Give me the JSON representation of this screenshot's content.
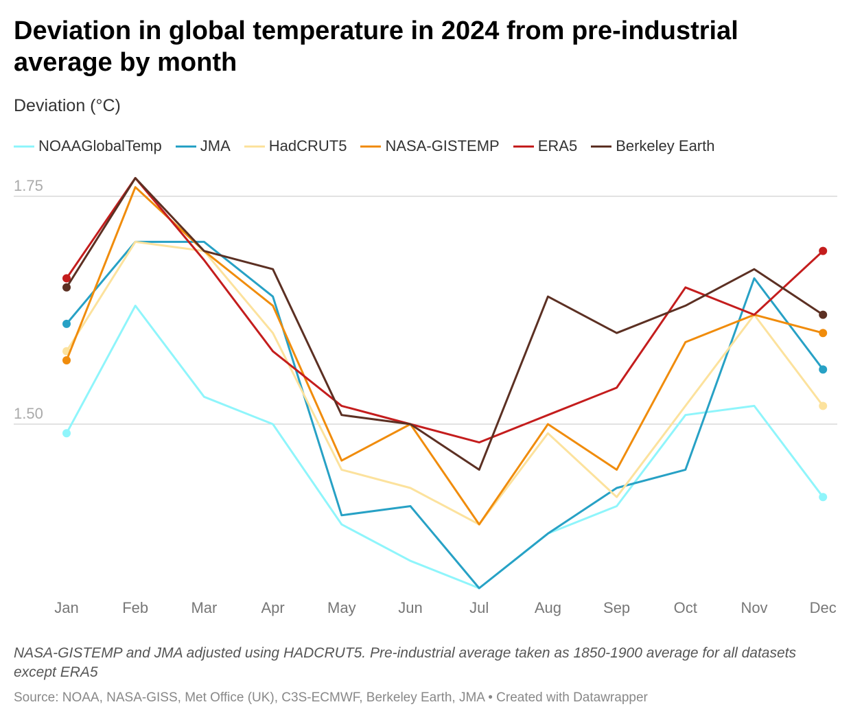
{
  "title": "Deviation in global temperature in 2024 from pre-industrial average by month",
  "subtitle": "Deviation (°C)",
  "notes": "NASA-GISTEMP and JMA adjusted using HADCRUT5. Pre-industrial average taken as 1850-1900 average for all datasets except ERA5",
  "source": "Source: NOAA, NASA-GISS, Met Office (UK), C3S-ECMWF, Berkeley Earth, JMA • Created with Datawrapper",
  "chart_data": {
    "type": "line",
    "title": "Deviation in global temperature in 2024 from pre-industrial average by month",
    "ylabel": "Deviation (°C)",
    "xlabel": "",
    "categories": [
      "Jan",
      "Feb",
      "Mar",
      "Apr",
      "May",
      "Jun",
      "Jul",
      "Aug",
      "Sep",
      "Oct",
      "Nov",
      "Dec"
    ],
    "yticks": [
      1.5,
      1.75
    ],
    "ytick_labels": [
      "1.50",
      "1.75"
    ],
    "ylim": [
      1.315,
      1.775
    ],
    "grid": true,
    "legend": "top",
    "series": [
      {
        "name": "NOAAGlobalTemp",
        "color": "#8ff5fb",
        "values": [
          1.49,
          1.63,
          1.53,
          1.5,
          1.39,
          1.35,
          1.32,
          1.38,
          1.41,
          1.51,
          1.52,
          1.42
        ]
      },
      {
        "name": "JMA",
        "color": "#27a1c5",
        "values": [
          1.61,
          1.7,
          1.7,
          1.64,
          1.4,
          1.41,
          1.32,
          1.38,
          1.43,
          1.45,
          1.66,
          1.56
        ]
      },
      {
        "name": "HadCRUT5",
        "color": "#fce29d",
        "values": [
          1.58,
          1.7,
          1.69,
          1.6,
          1.45,
          1.43,
          1.39,
          1.49,
          1.42,
          1.52,
          1.62,
          1.52
        ]
      },
      {
        "name": "NASA-GISTEMP",
        "color": "#f08c0c",
        "values": [
          1.57,
          1.76,
          1.69,
          1.63,
          1.46,
          1.5,
          1.39,
          1.5,
          1.45,
          1.59,
          1.62,
          1.6
        ]
      },
      {
        "name": "ERA5",
        "color": "#c41d1d",
        "values": [
          1.66,
          1.77,
          1.68,
          1.58,
          1.52,
          1.5,
          1.48,
          1.51,
          1.54,
          1.65,
          1.62,
          1.69
        ]
      },
      {
        "name": "Berkeley Earth",
        "color": "#5c3023",
        "values": [
          1.65,
          1.77,
          1.69,
          1.67,
          1.51,
          1.5,
          1.45,
          1.64,
          1.6,
          1.63,
          1.67,
          1.62
        ]
      }
    ]
  }
}
